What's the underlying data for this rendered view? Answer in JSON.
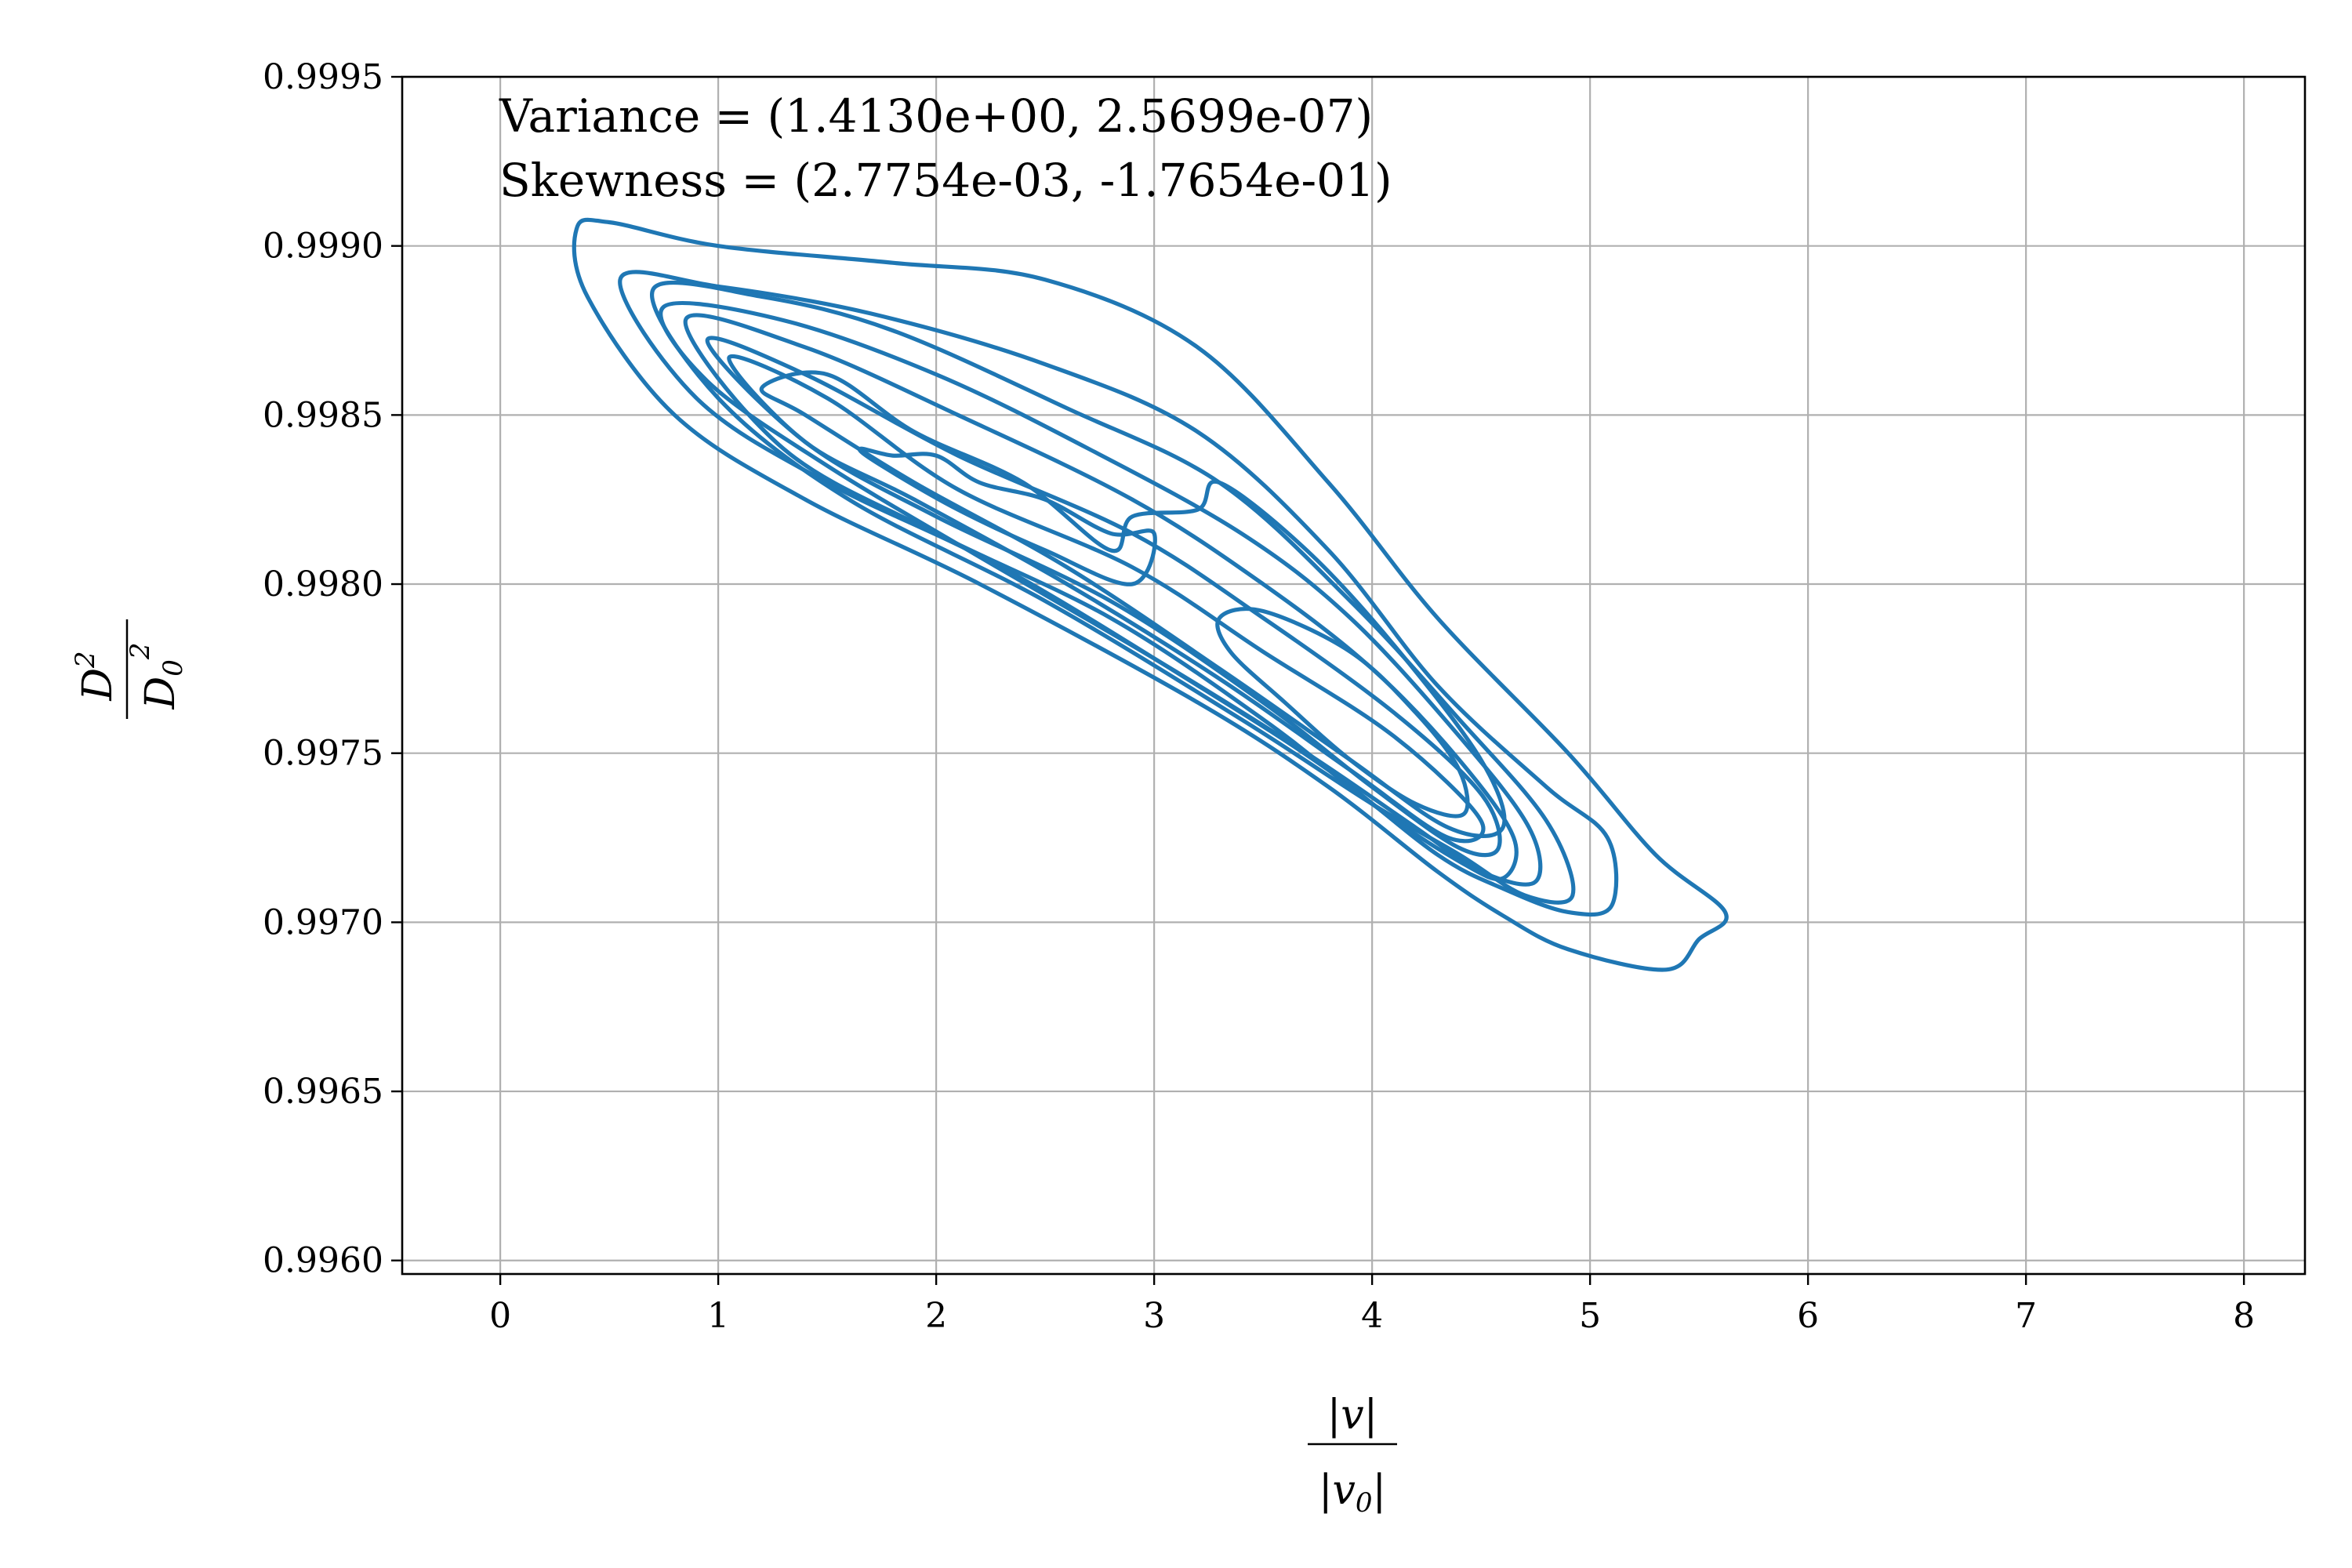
{
  "chart_data": {
    "type": "contour",
    "title": "",
    "xlabel": {
      "numerator": "|v|",
      "denominator": "|v",
      "denominator_sub": "0",
      "denominator_tail": "|"
    },
    "ylabel": {
      "numerator": "D",
      "numerator_sup": "2",
      "denominator": "D",
      "denominator_sub": "0",
      "denominator_sup": "2"
    },
    "xlim": [
      -0.45,
      8.28
    ],
    "ylim": [
      0.99596,
      0.9995
    ],
    "xticks": [
      0,
      1,
      2,
      3,
      4,
      5,
      6,
      7,
      8
    ],
    "xtick_labels": [
      "0",
      "1",
      "2",
      "3",
      "4",
      "5",
      "6",
      "7",
      "8"
    ],
    "yticks": [
      0.996,
      0.9965,
      0.997,
      0.9975,
      0.998,
      0.9985,
      0.999,
      0.9995
    ],
    "ytick_labels": [
      "0.9960",
      "0.9965",
      "0.9970",
      "0.9975",
      "0.9980",
      "0.9985",
      "0.9990",
      "0.9995"
    ],
    "grid": true,
    "line_color": "#1f77b4",
    "annotations": [
      "Variance = (1.4130e+00, 2.5699e-07)",
      "Skewness = (2.7754e-03, -1.7654e-01)"
    ],
    "contours": [
      {
        "level": 1,
        "points": [
          [
            0.35,
            0.99905
          ],
          [
            0.5,
            0.99907
          ],
          [
            1.0,
            0.999
          ],
          [
            1.8,
            0.99895
          ],
          [
            2.5,
            0.9989
          ],
          [
            3.2,
            0.9987
          ],
          [
            3.8,
            0.9983
          ],
          [
            4.3,
            0.9979
          ],
          [
            4.9,
            0.9975
          ],
          [
            5.3,
            0.9972
          ],
          [
            5.62,
            0.99703
          ],
          [
            5.5,
            0.99695
          ],
          [
            5.35,
            0.99686
          ],
          [
            4.9,
            0.99692
          ],
          [
            4.6,
            0.99702
          ],
          [
            4.3,
            0.99715
          ],
          [
            3.8,
            0.9974
          ],
          [
            3.2,
            0.99765
          ],
          [
            2.2,
            0.998
          ],
          [
            1.4,
            0.99825
          ],
          [
            0.8,
            0.9985
          ],
          [
            0.4,
            0.99885
          ]
        ]
      },
      {
        "level": 2,
        "points": [
          [
            0.55,
            0.9989
          ],
          [
            1.0,
            0.99888
          ],
          [
            1.7,
            0.9988
          ],
          [
            2.5,
            0.99865
          ],
          [
            3.2,
            0.99845
          ],
          [
            3.8,
            0.9981
          ],
          [
            4.3,
            0.9977
          ],
          [
            4.8,
            0.9974
          ],
          [
            5.08,
            0.99725
          ],
          [
            5.1,
            0.99705
          ],
          [
            4.9,
            0.99703
          ],
          [
            4.6,
            0.9971
          ],
          [
            4.3,
            0.9972
          ],
          [
            3.8,
            0.99745
          ],
          [
            3.2,
            0.9977
          ],
          [
            2.3,
            0.99805
          ],
          [
            1.5,
            0.9983
          ],
          [
            0.9,
            0.99855
          ]
        ]
      },
      {
        "level": 3,
        "points": [
          [
            0.7,
            0.99887
          ],
          [
            1.2,
            0.99885
          ],
          [
            1.8,
            0.99875
          ],
          [
            2.6,
            0.99852
          ],
          [
            3.3,
            0.9983
          ],
          [
            3.9,
            0.99795
          ],
          [
            4.4,
            0.9976
          ],
          [
            4.8,
            0.9973
          ],
          [
            4.92,
            0.99708
          ],
          [
            4.7,
            0.99708
          ],
          [
            4.4,
            0.9972
          ],
          [
            4.0,
            0.99735
          ],
          [
            3.4,
            0.9976
          ],
          [
            2.5,
            0.99795
          ],
          [
            1.6,
            0.99825
          ],
          [
            1.0,
            0.99855
          ]
        ]
      },
      {
        "level": 4,
        "points": [
          [
            0.75,
            0.99882
          ],
          [
            1.3,
            0.99878
          ],
          [
            2.0,
            0.99862
          ],
          [
            2.7,
            0.9984
          ],
          [
            3.4,
            0.99815
          ],
          [
            3.9,
            0.9979
          ],
          [
            4.4,
            0.99755
          ],
          [
            4.72,
            0.99728
          ],
          [
            4.75,
            0.99712
          ],
          [
            4.5,
            0.99715
          ],
          [
            4.2,
            0.99728
          ],
          [
            3.7,
            0.9975
          ],
          [
            3.0,
            0.99778
          ],
          [
            2.2,
            0.99808
          ],
          [
            1.5,
            0.99835
          ],
          [
            0.95,
            0.9986
          ]
        ]
      },
      {
        "level": 5,
        "points": [
          [
            0.85,
            0.99878
          ],
          [
            1.4,
            0.9987
          ],
          [
            2.1,
            0.9985
          ],
          [
            2.9,
            0.99825
          ],
          [
            3.5,
            0.998
          ],
          [
            4.0,
            0.99775
          ],
          [
            4.4,
            0.99748
          ],
          [
            4.65,
            0.99725
          ],
          [
            4.6,
            0.99713
          ],
          [
            4.4,
            0.99718
          ],
          [
            4.0,
            0.99735
          ],
          [
            3.5,
            0.9976
          ],
          [
            2.8,
            0.9979
          ],
          [
            2.0,
            0.99815
          ],
          [
            1.3,
            0.9984
          ]
        ]
      },
      {
        "level": 6,
        "points": [
          [
            0.95,
            0.99872
          ],
          [
            1.4,
            0.99862
          ],
          [
            2.1,
            0.99838
          ],
          [
            2.9,
            0.99815
          ],
          [
            3.5,
            0.9979
          ],
          [
            4.1,
            0.99762
          ],
          [
            4.5,
            0.99738
          ],
          [
            4.58,
            0.99722
          ],
          [
            4.4,
            0.99722
          ],
          [
            4.0,
            0.9974
          ],
          [
            3.5,
            0.99765
          ],
          [
            2.8,
            0.99795
          ],
          [
            2.0,
            0.9982
          ],
          [
            1.4,
            0.99842
          ]
        ]
      },
      {
        "level": 7,
        "points": [
          [
            1.05,
            0.99867
          ],
          [
            1.5,
            0.99855
          ],
          [
            2.1,
            0.99828
          ],
          [
            2.9,
            0.99805
          ],
          [
            3.5,
            0.9978
          ],
          [
            4.1,
            0.99755
          ],
          [
            4.5,
            0.9973
          ],
          [
            4.35,
            0.99725
          ],
          [
            3.9,
            0.99745
          ],
          [
            3.3,
            0.99772
          ],
          [
            2.6,
            0.998
          ],
          [
            1.9,
            0.99825
          ],
          [
            1.4,
            0.99842
          ]
        ]
      },
      {
        "level": 8,
        "points": [
          [
            1.2,
            0.99858
          ],
          [
            1.5,
            0.99862
          ],
          [
            1.9,
            0.99845
          ],
          [
            2.4,
            0.9983
          ],
          [
            2.8,
            0.9981
          ],
          [
            2.9,
            0.9982
          ],
          [
            3.2,
            0.99822
          ],
          [
            3.3,
            0.9983
          ],
          [
            3.7,
            0.9981
          ],
          [
            4.1,
            0.99782
          ],
          [
            4.5,
            0.99748
          ],
          [
            4.6,
            0.99728
          ],
          [
            4.35,
            0.99728
          ],
          [
            3.9,
            0.99748
          ],
          [
            3.3,
            0.99775
          ],
          [
            2.6,
            0.99805
          ],
          [
            1.9,
            0.9983
          ],
          [
            1.4,
            0.9985
          ]
        ]
      },
      {
        "level": 9,
        "points": [
          [
            1.65,
            0.9984
          ],
          [
            1.8,
            0.99838
          ],
          [
            2.0,
            0.99838
          ],
          [
            2.2,
            0.9983
          ],
          [
            2.5,
            0.99825
          ],
          [
            2.8,
            0.99815
          ],
          [
            3.0,
            0.99815
          ],
          [
            2.9,
            0.998
          ],
          [
            2.5,
            0.9981
          ],
          [
            2.1,
            0.99822
          ],
          [
            1.75,
            0.99835
          ]
        ]
      },
      {
        "level": 10,
        "points": [
          [
            3.3,
            0.9979
          ],
          [
            3.5,
            0.99792
          ],
          [
            3.9,
            0.9978
          ],
          [
            4.2,
            0.99762
          ],
          [
            4.4,
            0.99745
          ],
          [
            4.42,
            0.99732
          ],
          [
            4.2,
            0.99735
          ],
          [
            3.9,
            0.99748
          ],
          [
            3.6,
            0.99765
          ],
          [
            3.35,
            0.9978
          ]
        ]
      }
    ]
  }
}
